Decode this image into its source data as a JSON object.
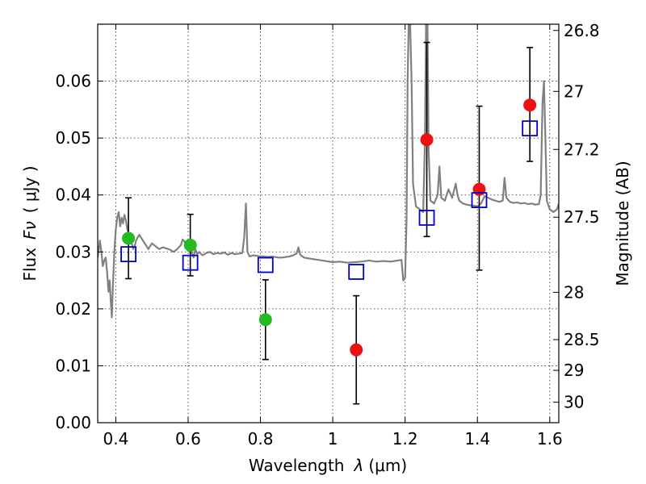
{
  "chart_data": {
    "type": "scatter",
    "title": "",
    "xlabel_text": "Wavelength",
    "xlabel_symbol": "λ",
    "xlabel_unit": "(μm)",
    "ylabel_text": "Flux",
    "ylabel_symbol": "Fν",
    "ylabel_unit": "( μJy )",
    "y2label": "Magnitude (AB)",
    "xlim": [
      0.35,
      1.625
    ],
    "ylim": [
      0,
      0.07
    ],
    "x_ticks": [
      0.4,
      0.6,
      0.8,
      1.0,
      1.2,
      1.4,
      1.6
    ],
    "x_tick_labels": [
      "0.4",
      "0.6",
      "0.8",
      "1",
      "1.2",
      "1.4",
      "1.6"
    ],
    "y_ticks": [
      0.0,
      0.01,
      0.02,
      0.03,
      0.04,
      0.05,
      0.06
    ],
    "y_tick_labels": [
      "0.00",
      "0.01",
      "0.02",
      "0.03",
      "0.04",
      "0.05",
      "0.06"
    ],
    "y2_ticks": [
      {
        "flux": 0.0689,
        "label": "26.8"
      },
      {
        "flux": 0.0582,
        "label": "27"
      },
      {
        "flux": 0.048,
        "label": "27.2"
      },
      {
        "flux": 0.0361,
        "label": "27.5"
      },
      {
        "flux": 0.0229,
        "label": "28"
      },
      {
        "flux": 0.0146,
        "label": "28.5"
      },
      {
        "flux": 0.0092,
        "label": "29"
      },
      {
        "flux": 0.0036,
        "label": "30"
      }
    ],
    "grid": true,
    "colors": {
      "spectrum": "#808080",
      "observed_optical": "#22bb22",
      "observed_nir": "#ee1111",
      "model_photometry": "#0000cc",
      "errorbar": "#000000"
    },
    "series": [
      {
        "kind": "line",
        "points": [
          [
            0.35,
            0.029
          ],
          [
            0.356,
            0.032
          ],
          [
            0.36,
            0.03
          ],
          [
            0.364,
            0.0275
          ],
          [
            0.368,
            0.0285
          ],
          [
            0.372,
            0.029
          ],
          [
            0.376,
            0.0265
          ],
          [
            0.38,
            0.023
          ],
          [
            0.383,
            0.025
          ],
          [
            0.386,
            0.0215
          ],
          [
            0.389,
            0.0185
          ],
          [
            0.392,
            0.024
          ],
          [
            0.396,
            0.03
          ],
          [
            0.4,
            0.034
          ],
          [
            0.404,
            0.036
          ],
          [
            0.408,
            0.037
          ],
          [
            0.412,
            0.0345
          ],
          [
            0.416,
            0.036
          ],
          [
            0.42,
            0.035
          ],
          [
            0.424,
            0.0365
          ],
          [
            0.428,
            0.0355
          ],
          [
            0.432,
            0.034
          ],
          [
            0.436,
            0.033
          ],
          [
            0.44,
            0.032
          ],
          [
            0.444,
            0.0315
          ],
          [
            0.448,
            0.0305
          ],
          [
            0.452,
            0.031
          ],
          [
            0.456,
            0.032
          ],
          [
            0.46,
            0.0325
          ],
          [
            0.465,
            0.033
          ],
          [
            0.47,
            0.0325
          ],
          [
            0.475,
            0.032
          ],
          [
            0.48,
            0.0315
          ],
          [
            0.485,
            0.031
          ],
          [
            0.49,
            0.0305
          ],
          [
            0.495,
            0.031
          ],
          [
            0.5,
            0.0315
          ],
          [
            0.51,
            0.031
          ],
          [
            0.52,
            0.0305
          ],
          [
            0.53,
            0.0308
          ],
          [
            0.54,
            0.0306
          ],
          [
            0.55,
            0.0304
          ],
          [
            0.56,
            0.03
          ],
          [
            0.57,
            0.0305
          ],
          [
            0.58,
            0.0312
          ],
          [
            0.585,
            0.0322
          ],
          [
            0.59,
            0.0318
          ],
          [
            0.595,
            0.0308
          ],
          [
            0.6,
            0.0302
          ],
          [
            0.605,
            0.0316
          ],
          [
            0.61,
            0.03
          ],
          [
            0.615,
            0.029
          ],
          [
            0.62,
            0.0305
          ],
          [
            0.625,
            0.0296
          ],
          [
            0.63,
            0.03
          ],
          [
            0.64,
            0.0294
          ],
          [
            0.65,
            0.0298
          ],
          [
            0.66,
            0.03
          ],
          [
            0.67,
            0.0296
          ],
          [
            0.68,
            0.0298
          ],
          [
            0.69,
            0.0297
          ],
          [
            0.7,
            0.0299
          ],
          [
            0.71,
            0.0295
          ],
          [
            0.72,
            0.0298
          ],
          [
            0.73,
            0.0296
          ],
          [
            0.74,
            0.0297
          ],
          [
            0.75,
            0.0298
          ],
          [
            0.755,
            0.0325
          ],
          [
            0.76,
            0.0385
          ],
          [
            0.764,
            0.03
          ],
          [
            0.77,
            0.0292
          ],
          [
            0.78,
            0.0294
          ],
          [
            0.79,
            0.0293
          ],
          [
            0.8,
            0.0292
          ],
          [
            0.81,
            0.0292
          ],
          [
            0.82,
            0.0291
          ],
          [
            0.83,
            0.0292
          ],
          [
            0.84,
            0.0291
          ],
          [
            0.85,
            0.029
          ],
          [
            0.86,
            0.029
          ],
          [
            0.87,
            0.0291
          ],
          [
            0.88,
            0.0292
          ],
          [
            0.89,
            0.0294
          ],
          [
            0.9,
            0.0297
          ],
          [
            0.905,
            0.0308
          ],
          [
            0.91,
            0.0295
          ],
          [
            0.92,
            0.029
          ],
          [
            0.94,
            0.0288
          ],
          [
            0.96,
            0.0286
          ],
          [
            0.98,
            0.0284
          ],
          [
            1.0,
            0.0282
          ],
          [
            1.02,
            0.0283
          ],
          [
            1.04,
            0.0281
          ],
          [
            1.06,
            0.0282
          ],
          [
            1.08,
            0.0283
          ],
          [
            1.1,
            0.0285
          ],
          [
            1.12,
            0.0283
          ],
          [
            1.14,
            0.0284
          ],
          [
            1.16,
            0.0283
          ],
          [
            1.18,
            0.0285
          ],
          [
            1.19,
            0.0286
          ],
          [
            1.195,
            0.025
          ],
          [
            1.2,
            0.0255
          ],
          [
            1.204,
            0.036
          ],
          [
            1.207,
            0.06
          ],
          [
            1.21,
            0.07
          ],
          [
            1.214,
            0.07
          ],
          [
            1.218,
            0.06
          ],
          [
            1.222,
            0.042
          ],
          [
            1.23,
            0.038
          ],
          [
            1.24,
            0.0375
          ],
          [
            1.25,
            0.037
          ],
          [
            1.255,
            0.05
          ],
          [
            1.258,
            0.07
          ],
          [
            1.262,
            0.07
          ],
          [
            1.265,
            0.048
          ],
          [
            1.27,
            0.039
          ],
          [
            1.28,
            0.0385
          ],
          [
            1.29,
            0.04
          ],
          [
            1.295,
            0.045
          ],
          [
            1.3,
            0.0395
          ],
          [
            1.31,
            0.039
          ],
          [
            1.32,
            0.041
          ],
          [
            1.33,
            0.0395
          ],
          [
            1.34,
            0.042
          ],
          [
            1.345,
            0.04
          ],
          [
            1.35,
            0.039
          ],
          [
            1.36,
            0.0385
          ],
          [
            1.37,
            0.0383
          ],
          [
            1.38,
            0.0382
          ],
          [
            1.39,
            0.0381
          ],
          [
            1.4,
            0.038
          ],
          [
            1.41,
            0.0385
          ],
          [
            1.42,
            0.0398
          ],
          [
            1.43,
            0.0395
          ],
          [
            1.44,
            0.0392
          ],
          [
            1.45,
            0.039
          ],
          [
            1.46,
            0.0388
          ],
          [
            1.47,
            0.039
          ],
          [
            1.475,
            0.043
          ],
          [
            1.48,
            0.0395
          ],
          [
            1.49,
            0.0388
          ],
          [
            1.5,
            0.0386
          ],
          [
            1.51,
            0.0387
          ],
          [
            1.52,
            0.0385
          ],
          [
            1.53,
            0.0386
          ],
          [
            1.54,
            0.0384
          ],
          [
            1.55,
            0.0385
          ],
          [
            1.56,
            0.0383
          ],
          [
            1.57,
            0.0384
          ],
          [
            1.575,
            0.04
          ],
          [
            1.58,
            0.056
          ],
          [
            1.584,
            0.06
          ],
          [
            1.588,
            0.05
          ],
          [
            1.592,
            0.039
          ],
          [
            1.6,
            0.0375
          ],
          [
            1.61,
            0.037
          ],
          [
            1.62,
            0.0375
          ],
          [
            1.625,
            0.0385
          ]
        ]
      },
      {
        "kind": "points-with-errors",
        "color": "#22bb22",
        "points": [
          {
            "x": 0.435,
            "y": 0.0324,
            "lo": 0.0253,
            "hi": 0.0395
          },
          {
            "x": 0.606,
            "y": 0.0312,
            "lo": 0.0258,
            "hi": 0.0366
          },
          {
            "x": 0.814,
            "y": 0.0181,
            "lo": 0.0111,
            "hi": 0.0251
          }
        ]
      },
      {
        "kind": "points-with-errors",
        "color": "#ee1111",
        "points": [
          {
            "x": 1.065,
            "y": 0.0128,
            "lo": 0.0033,
            "hi": 0.0223
          },
          {
            "x": 1.26,
            "y": 0.0497,
            "lo": 0.0327,
            "hi": 0.0668
          },
          {
            "x": 1.405,
            "y": 0.041,
            "lo": 0.0268,
            "hi": 0.0556
          },
          {
            "x": 1.545,
            "y": 0.0558,
            "lo": 0.0459,
            "hi": 0.0659
          }
        ]
      },
      {
        "kind": "open-squares",
        "color": "#0000cc",
        "points": [
          {
            "x": 0.435,
            "y": 0.0296
          },
          {
            "x": 0.606,
            "y": 0.0281
          },
          {
            "x": 0.814,
            "y": 0.0277
          },
          {
            "x": 1.065,
            "y": 0.0265
          },
          {
            "x": 1.26,
            "y": 0.036
          },
          {
            "x": 1.405,
            "y": 0.0391
          },
          {
            "x": 1.545,
            "y": 0.0517
          }
        ]
      }
    ]
  }
}
